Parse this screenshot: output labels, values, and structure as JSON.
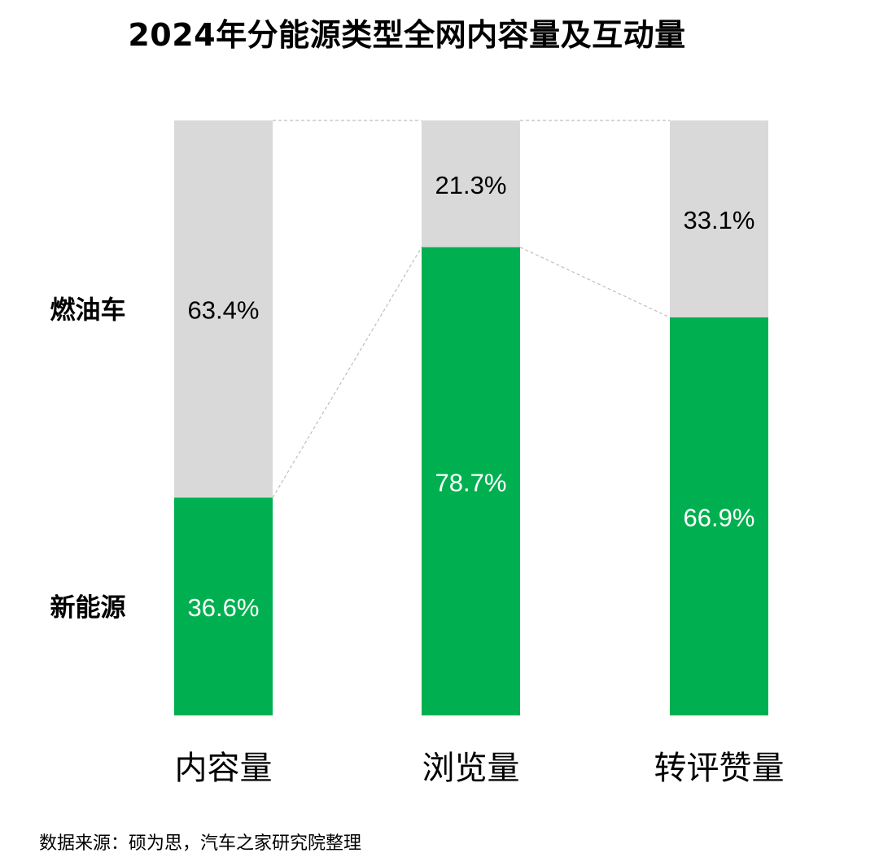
{
  "chart_data": {
    "type": "bar",
    "stacked": true,
    "percent_stacked": true,
    "title": "2024年分能源类型全网内容量及互动量",
    "categories": [
      "内容量",
      "浏览量",
      "转评赞量"
    ],
    "series": [
      {
        "name": "新能源",
        "values": [
          36.6,
          78.7,
          66.9
        ],
        "labels": [
          "36.6%",
          "78.7%",
          "66.9%"
        ],
        "color": "#00b050",
        "label_color": "#ffffff"
      },
      {
        "name": "燃油车",
        "values": [
          63.4,
          21.3,
          33.1
        ],
        "labels": [
          "63.4%",
          "21.3%",
          "33.1%"
        ],
        "color": "#d9d9d9",
        "label_color": "#000000"
      }
    ],
    "ylim": [
      0,
      100
    ],
    "grid": false,
    "legend": "left",
    "connector_lines": true
  },
  "source_note": "数据来源：硕为思，汽车之家研究院整理"
}
